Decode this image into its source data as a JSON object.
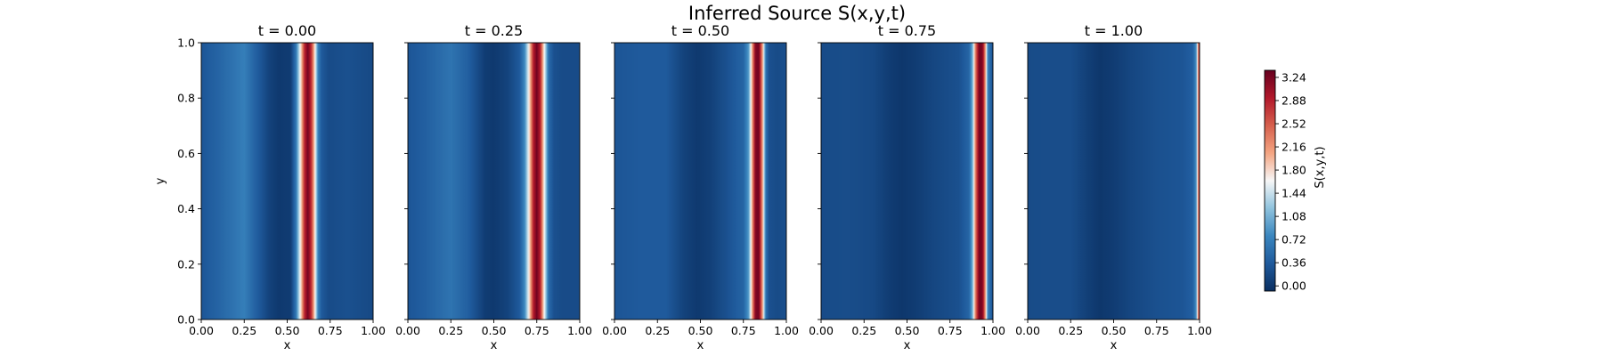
{
  "figure": {
    "title": "Inferred Source S(x,y,t)",
    "colorbar_label": "S(x,y,t)"
  },
  "chart_data": {
    "type": "heatmap",
    "title": "Inferred Source S(x,y,t)",
    "xlabel": "x",
    "ylabel": "y",
    "xlim": [
      0,
      1
    ],
    "ylim": [
      0,
      1
    ],
    "x_ticks": [
      "0.00",
      "0.25",
      "0.50",
      "0.75",
      "1.00"
    ],
    "y_ticks": [
      "0.0",
      "0.2",
      "0.4",
      "0.6",
      "0.8",
      "1.0"
    ],
    "colormap": "RdBu_r",
    "colors": [
      "#0a2f61",
      "#1f5a9c",
      "#3a86bf",
      "#8fc3de",
      "#f7f7f7",
      "#f4a582",
      "#d6604d",
      "#b2182b",
      "#67001f"
    ],
    "colorbar": {
      "label": "S(x,y,t)",
      "range": [
        -0.08,
        3.35
      ],
      "ticks": [
        "0.00",
        "0.36",
        "0.72",
        "1.08",
        "1.44",
        "1.80",
        "2.16",
        "2.52",
        "2.88",
        "3.24"
      ]
    },
    "panels": [
      {
        "title": "t = 0.00",
        "t": 0.0,
        "profile": {
          "x": [
            0,
            0.1,
            0.25,
            0.32,
            0.4,
            0.45,
            0.52,
            0.55,
            0.58,
            0.6,
            0.62,
            0.64,
            0.66,
            0.68,
            0.7,
            0.74,
            0.85,
            1.0
          ],
          "S": [
            0.3,
            0.45,
            0.7,
            0.4,
            0.1,
            0.02,
            0.05,
            0.6,
            1.8,
            2.8,
            3.3,
            2.8,
            1.8,
            0.7,
            0.35,
            0.2,
            0.25,
            0.18
          ]
        }
      },
      {
        "title": "t = 0.25",
        "t": 0.25,
        "profile": {
          "x": [
            0,
            0.1,
            0.25,
            0.35,
            0.45,
            0.5,
            0.58,
            0.65,
            0.68,
            0.71,
            0.73,
            0.75,
            0.77,
            0.79,
            0.82,
            0.85,
            0.9,
            1.0
          ],
          "S": [
            0.3,
            0.4,
            0.6,
            0.4,
            0.05,
            0.02,
            0.12,
            0.35,
            0.8,
            1.9,
            2.9,
            3.3,
            2.9,
            1.8,
            0.5,
            0.25,
            0.2,
            0.2
          ]
        }
      },
      {
        "title": "t = 0.50",
        "t": 0.5,
        "profile": {
          "x": [
            0,
            0.15,
            0.3,
            0.4,
            0.48,
            0.55,
            0.65,
            0.75,
            0.78,
            0.8,
            0.82,
            0.84,
            0.86,
            0.88,
            0.9,
            0.95,
            1.0
          ],
          "S": [
            0.3,
            0.35,
            0.35,
            0.12,
            0.02,
            0.08,
            0.25,
            0.45,
            0.9,
            2.0,
            3.2,
            3.3,
            2.2,
            0.6,
            0.25,
            0.2,
            0.25
          ]
        }
      },
      {
        "title": "t = 0.75",
        "t": 0.75,
        "profile": {
          "x": [
            0,
            0.15,
            0.3,
            0.4,
            0.47,
            0.55,
            0.65,
            0.8,
            0.86,
            0.88,
            0.9,
            0.92,
            0.94,
            0.96,
            0.97,
            1.0
          ],
          "S": [
            0.2,
            0.22,
            0.18,
            0.05,
            0.0,
            0.05,
            0.15,
            0.25,
            0.45,
            1.0,
            2.4,
            3.3,
            3.2,
            1.8,
            0.7,
            0.25
          ]
        }
      },
      {
        "title": "t = 1.00",
        "t": 1.0,
        "profile": {
          "x": [
            0,
            0.1,
            0.25,
            0.35,
            0.42,
            0.5,
            0.6,
            0.75,
            0.9,
            0.96,
            0.98,
            0.99,
            1.0
          ],
          "S": [
            0.2,
            0.22,
            0.22,
            0.08,
            0.0,
            0.05,
            0.15,
            0.25,
            0.3,
            0.4,
            0.8,
            2.0,
            3.3
          ]
        }
      }
    ]
  }
}
